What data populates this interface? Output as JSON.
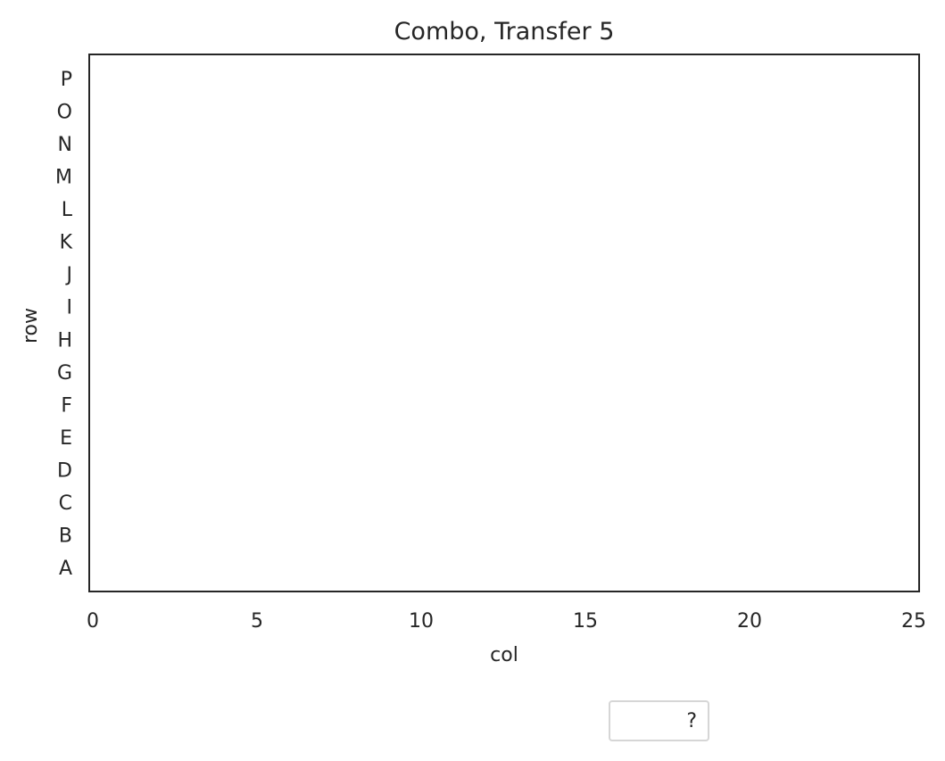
{
  "chart_data": {
    "type": "scatter",
    "title": "Combo, Transfer 5",
    "xlabel": "col",
    "ylabel": "row",
    "xlim": [
      0,
      25
    ],
    "x_ticks": [
      0,
      5,
      10,
      15,
      20,
      25
    ],
    "y_categories": [
      "A",
      "B",
      "C",
      "D",
      "E",
      "F",
      "G",
      "H",
      "I",
      "J",
      "K",
      "L",
      "M",
      "N",
      "O",
      "P"
    ],
    "grid": false,
    "series": [],
    "legend": {
      "placement": "bottom-center",
      "entries": [
        "?"
      ]
    }
  },
  "colors": {
    "text": "#262626",
    "axes_edge": "#262626",
    "legend_edge": "#d6d6d6",
    "background": "#ffffff"
  }
}
